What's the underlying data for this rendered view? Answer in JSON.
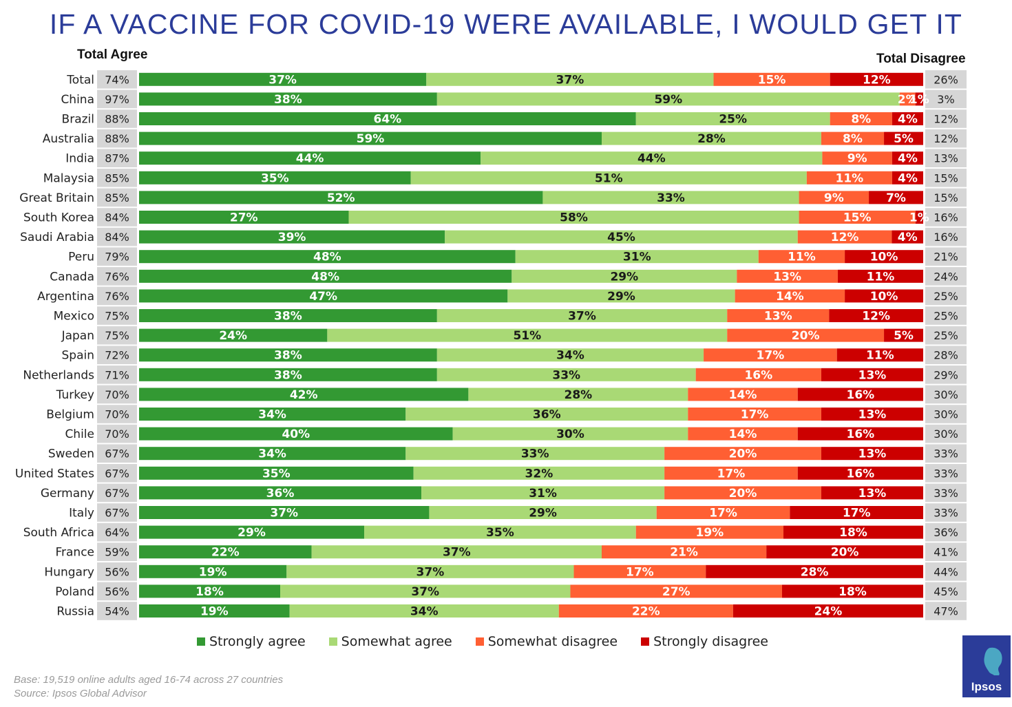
{
  "title": "IF A VACCINE FOR COVID-19 WERE AVAILABLE, I WOULD GET IT",
  "headers": {
    "total_agree": "Total Agree",
    "total_disagree": "Total Disagree"
  },
  "notes": {
    "base": "Base: 19,519 online adults aged 16-74 across 27 countries",
    "source": "Source: Ipsos Global Advisor"
  },
  "logo_text": "Ipsos",
  "colors": {
    "strongly_agree": "#339933",
    "somewhat_agree": "#a9d975",
    "somewhat_disagree": "#ff5f33",
    "strongly_disagree": "#cc0000",
    "side_box": "#d6d6d6",
    "title": "#2b3c99",
    "logo": "#2b3c99"
  },
  "chart_data": {
    "type": "bar",
    "orientation": "horizontal",
    "stacked": true,
    "title": "IF A VACCINE FOR COVID-19 WERE AVAILABLE, I WOULD GET IT",
    "legend_position": "bottom",
    "series": [
      {
        "name": "Strongly agree",
        "values": [
          37,
          38,
          64,
          59,
          44,
          35,
          52,
          27,
          39,
          48,
          48,
          47,
          38,
          24,
          38,
          38,
          42,
          34,
          40,
          34,
          35,
          36,
          37,
          29,
          22,
          19,
          18,
          19
        ]
      },
      {
        "name": "Somewhat agree",
        "values": [
          37,
          59,
          25,
          28,
          44,
          51,
          33,
          58,
          45,
          31,
          29,
          29,
          37,
          51,
          34,
          33,
          28,
          36,
          30,
          33,
          32,
          31,
          29,
          35,
          37,
          37,
          37,
          34
        ]
      },
      {
        "name": "Somewhat disagree",
        "values": [
          15,
          2,
          8,
          8,
          9,
          11,
          9,
          15,
          12,
          11,
          13,
          14,
          13,
          20,
          17,
          16,
          14,
          17,
          14,
          20,
          17,
          20,
          17,
          19,
          21,
          17,
          27,
          22
        ]
      },
      {
        "name": "Strongly disagree",
        "values": [
          12,
          1,
          4,
          5,
          4,
          4,
          7,
          1,
          4,
          10,
          11,
          10,
          12,
          5,
          11,
          13,
          16,
          13,
          16,
          13,
          16,
          13,
          17,
          18,
          20,
          28,
          18,
          24
        ]
      }
    ],
    "categories": [
      "Total",
      "China",
      "Brazil",
      "Australia",
      "India",
      "Malaysia",
      "Great Britain",
      "South Korea",
      "Saudi Arabia",
      "Peru",
      "Canada",
      "Argentina",
      "Mexico",
      "Japan",
      "Spain",
      "Netherlands",
      "Turkey",
      "Belgium",
      "Chile",
      "Sweden",
      "United States",
      "Germany",
      "Italy",
      "South Africa",
      "France",
      "Hungary",
      "Poland",
      "Russia"
    ],
    "total_agree": [
      "74%",
      "97%",
      "88%",
      "88%",
      "87%",
      "85%",
      "85%",
      "84%",
      "84%",
      "79%",
      "76%",
      "76%",
      "75%",
      "75%",
      "72%",
      "71%",
      "70%",
      "70%",
      "70%",
      "67%",
      "67%",
      "67%",
      "67%",
      "64%",
      "59%",
      "56%",
      "56%",
      "54%"
    ],
    "total_disagree": [
      "26%",
      "3%",
      "12%",
      "12%",
      "13%",
      "15%",
      "15%",
      "16%",
      "16%",
      "21%",
      "24%",
      "25%",
      "25%",
      "25%",
      "28%",
      "29%",
      "30%",
      "30%",
      "30%",
      "33%",
      "33%",
      "33%",
      "33%",
      "36%",
      "41%",
      "44%",
      "45%",
      "47%"
    ]
  }
}
